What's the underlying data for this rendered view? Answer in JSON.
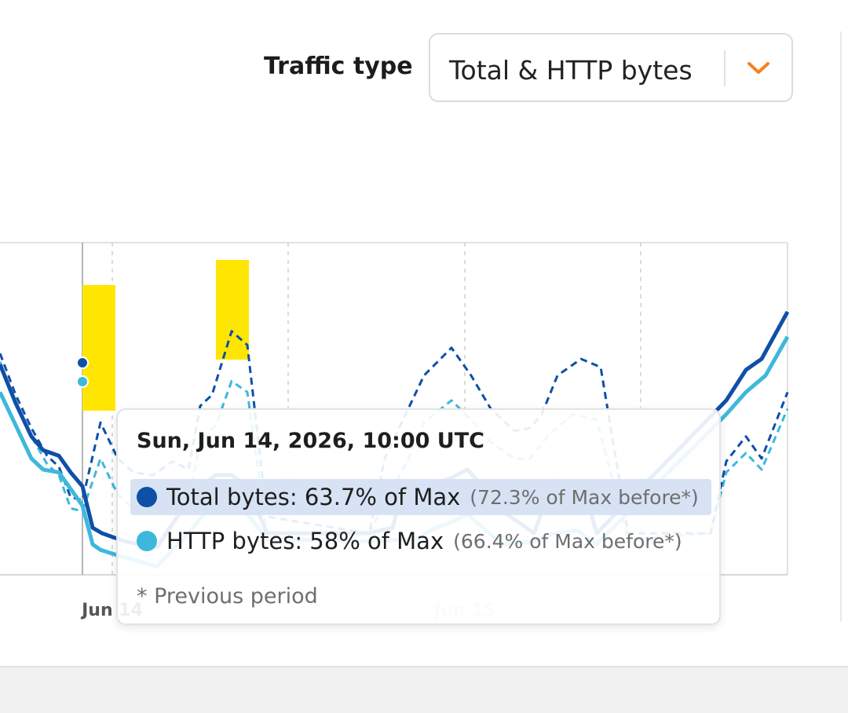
{
  "controls": {
    "traffic_type_label": "Traffic type",
    "traffic_type_value": "Total & HTTP bytes",
    "accent_color": "#F5821F"
  },
  "chart_data": {
    "type": "line",
    "xticks": [
      "Jun 14",
      "Jun 15"
    ],
    "colors": {
      "total": "#0F4FA8",
      "http": "#3DB8DC",
      "highlight": "#FFE600"
    },
    "series": [
      {
        "name": "Total bytes",
        "style": "solid",
        "color": "#0F4FA8",
        "points": [
          [
            0,
            56
          ],
          [
            20,
            42
          ],
          [
            40,
            30
          ],
          [
            55,
            25
          ],
          [
            75,
            23
          ],
          [
            90,
            17
          ],
          [
            105,
            12
          ],
          [
            118,
            -3
          ],
          [
            130,
            -5
          ],
          [
            150,
            -7
          ],
          [
            160,
            -8
          ],
          [
            200,
            -10
          ],
          [
            240,
            7
          ],
          [
            255,
            12
          ],
          [
            275,
            16
          ],
          [
            295,
            16
          ],
          [
            315,
            12
          ],
          [
            340,
            -5
          ],
          [
            470,
            -5
          ],
          [
            500,
            -3
          ],
          [
            515,
            13
          ],
          [
            535,
            9
          ],
          [
            555,
            13
          ],
          [
            575,
            15
          ],
          [
            595,
            18
          ],
          [
            615,
            12
          ],
          [
            640,
            3
          ],
          [
            660,
            -1
          ],
          [
            680,
            -5
          ],
          [
            705,
            14
          ],
          [
            722,
            11
          ],
          [
            742,
            13
          ],
          [
            760,
            -5
          ],
          [
            925,
            43
          ],
          [
            950,
            54
          ],
          [
            970,
            58
          ],
          [
            1003,
            75
          ]
        ]
      },
      {
        "name": "HTTP bytes",
        "style": "solid",
        "color": "#3DB8DC",
        "points": [
          [
            0,
            46
          ],
          [
            20,
            34
          ],
          [
            40,
            22
          ],
          [
            55,
            18
          ],
          [
            75,
            17
          ],
          [
            90,
            11
          ],
          [
            105,
            5
          ],
          [
            118,
            -9
          ],
          [
            128,
            -11
          ],
          [
            150,
            -13
          ],
          [
            200,
            -17
          ],
          [
            240,
            -5
          ],
          [
            260,
            2
          ],
          [
            275,
            5
          ],
          [
            295,
            5
          ],
          [
            315,
            2
          ],
          [
            340,
            -7
          ],
          [
            470,
            -8
          ],
          [
            530,
            -7
          ],
          [
            555,
            -3
          ],
          [
            575,
            -1
          ],
          [
            595,
            2
          ],
          [
            615,
            -3
          ],
          [
            640,
            -9
          ],
          [
            680,
            -8
          ],
          [
            705,
            -5
          ],
          [
            735,
            -4
          ],
          [
            760,
            -9
          ],
          [
            925,
            38
          ],
          [
            950,
            46
          ],
          [
            975,
            52
          ],
          [
            1003,
            66
          ]
        ]
      },
      {
        "name": "Total bytes previous",
        "style": "dashed",
        "color": "#0F4FA8",
        "points": [
          [
            0,
            60
          ],
          [
            20,
            45
          ],
          [
            40,
            33
          ],
          [
            60,
            23
          ],
          [
            75,
            19
          ],
          [
            90,
            8
          ],
          [
            105,
            7
          ],
          [
            128,
            35
          ],
          [
            150,
            22
          ],
          [
            170,
            17
          ],
          [
            195,
            16
          ],
          [
            220,
            21
          ],
          [
            240,
            18
          ],
          [
            255,
            41
          ],
          [
            270,
            45
          ],
          [
            295,
            68
          ],
          [
            315,
            63
          ],
          [
            340,
            1
          ],
          [
            470,
            -5
          ],
          [
            490,
            22
          ],
          [
            510,
            34
          ],
          [
            540,
            52
          ],
          [
            575,
            62
          ],
          [
            600,
            52
          ],
          [
            625,
            40
          ],
          [
            655,
            32
          ],
          [
            675,
            33
          ],
          [
            690,
            38
          ],
          [
            710,
            52
          ],
          [
            740,
            58
          ],
          [
            765,
            55
          ],
          [
            800,
            -5
          ],
          [
            905,
            -5
          ],
          [
            925,
            21
          ],
          [
            950,
            30
          ],
          [
            970,
            22
          ],
          [
            1003,
            46
          ]
        ]
      },
      {
        "name": "HTTP bytes previous",
        "style": "dashed",
        "color": "#3DB8DC",
        "points": [
          [
            0,
            57
          ],
          [
            20,
            42
          ],
          [
            40,
            30
          ],
          [
            60,
            20
          ],
          [
            75,
            16
          ],
          [
            90,
            4
          ],
          [
            105,
            3
          ],
          [
            128,
            22
          ],
          [
            150,
            9
          ],
          [
            170,
            4
          ],
          [
            195,
            3
          ],
          [
            220,
            8
          ],
          [
            240,
            5
          ],
          [
            255,
            29
          ],
          [
            275,
            34
          ],
          [
            295,
            50
          ],
          [
            315,
            46
          ],
          [
            340,
            -5
          ],
          [
            470,
            -5
          ],
          [
            500,
            11
          ],
          [
            520,
            22
          ],
          [
            540,
            35
          ],
          [
            575,
            43
          ],
          [
            600,
            36
          ],
          [
            625,
            28
          ],
          [
            655,
            22
          ],
          [
            675,
            22
          ],
          [
            700,
            31
          ],
          [
            730,
            38
          ],
          [
            760,
            36
          ],
          [
            800,
            -7
          ],
          [
            905,
            -5
          ],
          [
            925,
            17
          ],
          [
            950,
            24
          ],
          [
            970,
            18
          ],
          [
            1003,
            40
          ]
        ]
      }
    ]
  },
  "tooltip": {
    "timestamp": "Sun, Jun 14, 2026, 10:00 UTC",
    "rows": [
      {
        "text": "Total bytes: 63.7% of Max",
        "prev": "(72.3% of Max before*)",
        "color": "#0F4FA8"
      },
      {
        "text": "HTTP bytes: 58% of Max",
        "prev": "(66.4% of Max before*)",
        "color": "#3DB8DC"
      }
    ],
    "footnote": "* Previous period"
  }
}
